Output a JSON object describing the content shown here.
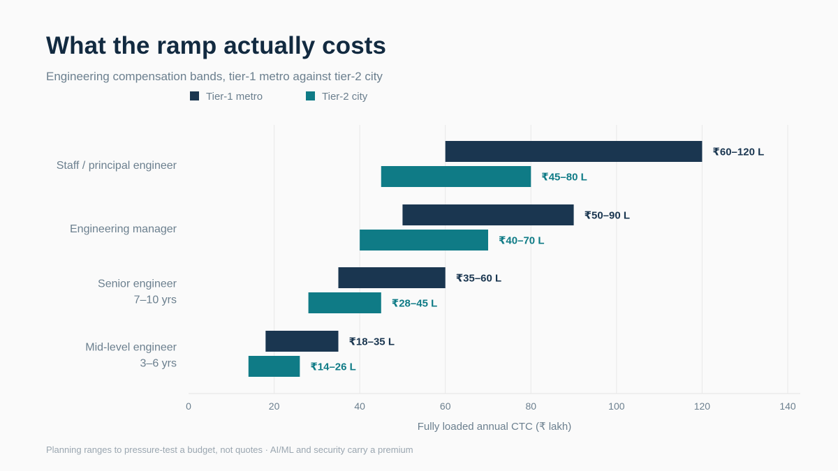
{
  "title": "What the ramp actually costs",
  "subtitle": "Engineering compensation bands, tier-1 metro against tier-2 city",
  "footnote": "Planning ranges to pressure-test a budget, not quotes · AI/ML and security carry a premium",
  "colors": {
    "tier1": "#1a3650",
    "tier2": "#0f7b86",
    "grid": "#e8e8e8",
    "text_muted": "#6b7f8e"
  },
  "chart_data": {
    "type": "bar",
    "orientation": "horizontal",
    "subtype": "floating-range",
    "xlabel": "Fully loaded annual CTC (₹ lakh)",
    "xlim": [
      0,
      143
    ],
    "xticks": [
      0,
      20,
      40,
      60,
      80,
      100,
      120,
      140
    ],
    "grid": "vertical",
    "legend_position": "top",
    "categories": [
      {
        "lines": [
          "Staff / principal engineer"
        ]
      },
      {
        "lines": [
          "Engineering manager"
        ]
      },
      {
        "lines": [
          "Senior engineer",
          "7–10 yrs"
        ]
      },
      {
        "lines": [
          "Mid-level engineer",
          "3–6 yrs"
        ]
      }
    ],
    "series": [
      {
        "name": "Tier-1 metro",
        "color": "#1a3650",
        "ranges": [
          [
            60,
            120
          ],
          [
            50,
            90
          ],
          [
            35,
            60
          ],
          [
            18,
            35
          ]
        ],
        "labels": [
          "₹60–120 L",
          "₹50–90 L",
          "₹35–60 L",
          "₹18–35 L"
        ]
      },
      {
        "name": "Tier-2 city",
        "color": "#0f7b86",
        "ranges": [
          [
            45,
            80
          ],
          [
            40,
            70
          ],
          [
            28,
            45
          ],
          [
            14,
            26
          ]
        ],
        "labels": [
          "₹45–80 L",
          "₹40–70 L",
          "₹28–45 L",
          "₹14–26 L"
        ]
      }
    ]
  }
}
